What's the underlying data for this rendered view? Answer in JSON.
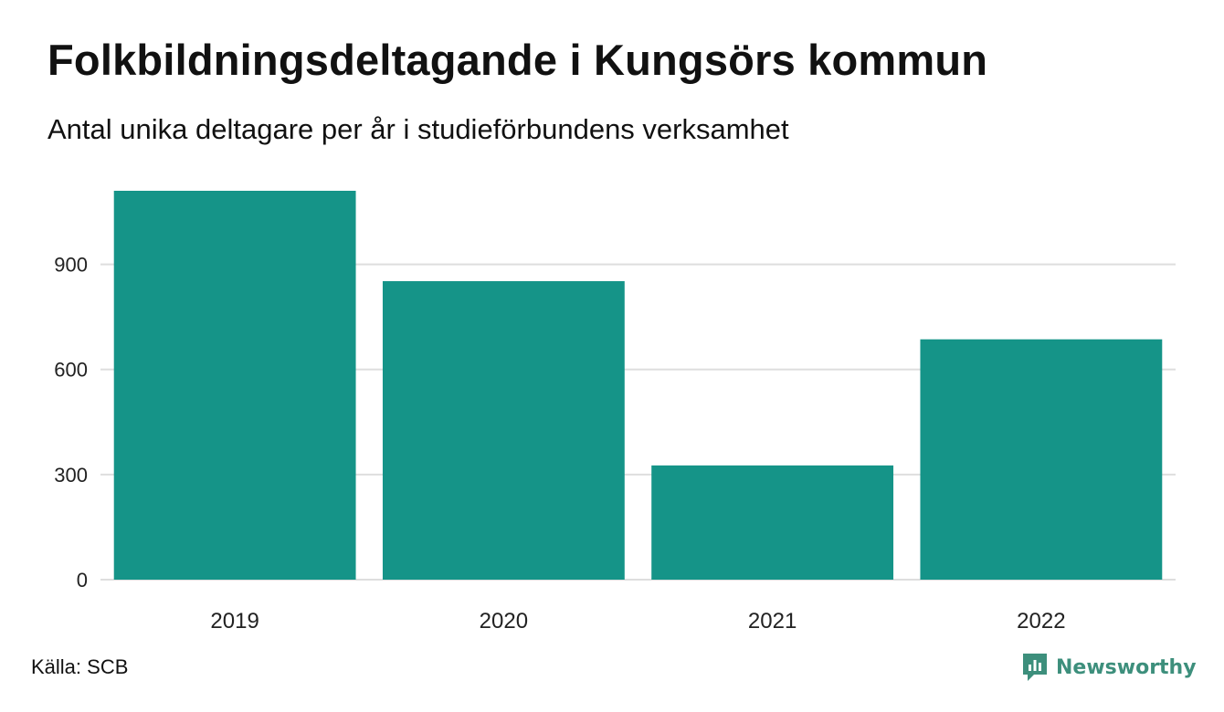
{
  "header": {
    "title": "Folkbildningsdeltagande i Kungsörs kommun",
    "subtitle": "Antal unika deltagare per år i studieförbundens verksamhet"
  },
  "footer": {
    "source": "Källa: SCB",
    "brand": "Newsworthy",
    "brand_icon": "newsworthy-logo-icon"
  },
  "colors": {
    "bar": "#159488",
    "grid": "#dedede",
    "brand": "#3d8f7c"
  },
  "chart_data": {
    "type": "bar",
    "title": "Folkbildningsdeltagande i Kungsörs kommun",
    "subtitle": "Antal unika deltagare per år i studieförbundens verksamhet",
    "categories": [
      "2019",
      "2020",
      "2021",
      "2022"
    ],
    "values": [
      1110,
      852,
      326,
      686
    ],
    "xlabel": "",
    "ylabel": "",
    "ylim": [
      0,
      1110
    ],
    "yticks": [
      0,
      300,
      600,
      900
    ],
    "grid": true,
    "legend": "none"
  }
}
